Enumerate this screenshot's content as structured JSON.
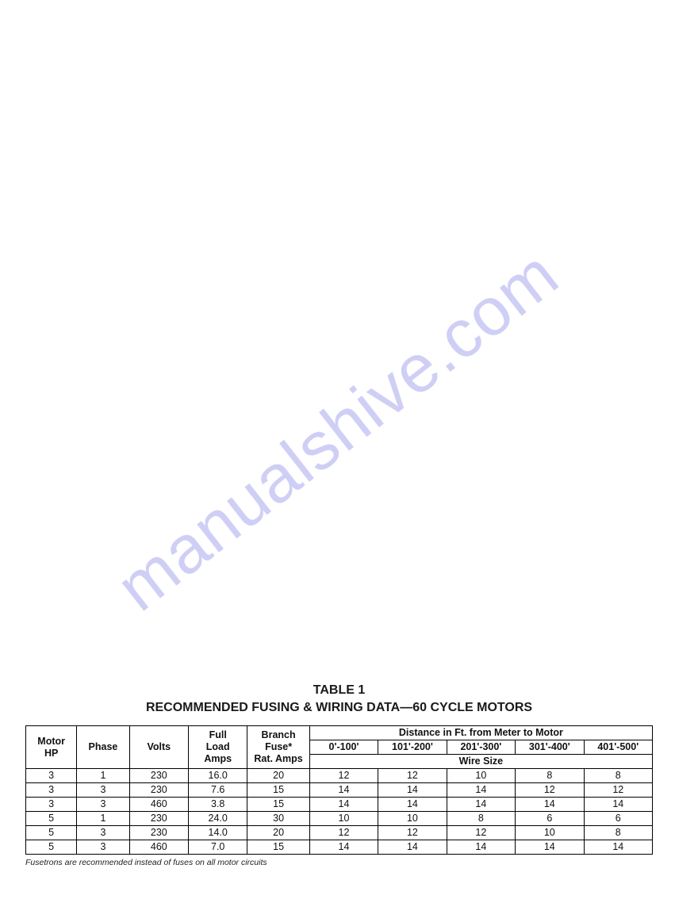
{
  "watermark": {
    "text": "manualshive.com",
    "color": "#a9a8f0",
    "rotation_deg": -38,
    "fontsize": 85
  },
  "table": {
    "caption_line1": "TABLE 1",
    "caption_line2": "RECOMMENDED FUSING & WIRING DATA—60 CYCLE MOTORS",
    "columns": {
      "motor_hp": "Motor HP",
      "phase": "Phase",
      "volts": "Volts",
      "full_load_amps": "Full Load Amps",
      "branch_fuse": "Branch Fuse* Rat. Amps",
      "distance_header": "Distance in Ft. from Meter to Motor",
      "wire_size": "Wire Size",
      "dist_ranges": [
        "0'-100'",
        "101'-200'",
        "201'-300'",
        "301'-400'",
        "401'-500'"
      ]
    },
    "rows": [
      {
        "hp": "3",
        "phase": "1",
        "volts": "230",
        "amps": "16.0",
        "fuse": "20",
        "dist": [
          "12",
          "12",
          "10",
          "8",
          "8"
        ]
      },
      {
        "hp": "3",
        "phase": "3",
        "volts": "230",
        "amps": "7.6",
        "fuse": "15",
        "dist": [
          "14",
          "14",
          "14",
          "12",
          "12"
        ]
      },
      {
        "hp": "3",
        "phase": "3",
        "volts": "460",
        "amps": "3.8",
        "fuse": "15",
        "dist": [
          "14",
          "14",
          "14",
          "14",
          "14"
        ]
      },
      {
        "hp": "5",
        "phase": "1",
        "volts": "230",
        "amps": "24.0",
        "fuse": "30",
        "dist": [
          "10",
          "10",
          "8",
          "6",
          "6"
        ]
      },
      {
        "hp": "5",
        "phase": "3",
        "volts": "230",
        "amps": "14.0",
        "fuse": "20",
        "dist": [
          "12",
          "12",
          "12",
          "10",
          "8"
        ]
      },
      {
        "hp": "5",
        "phase": "3",
        "volts": "460",
        "amps": "7.0",
        "fuse": "15",
        "dist": [
          "14",
          "14",
          "14",
          "14",
          "14"
        ]
      }
    ],
    "footnote": "Fusetrons are recommended instead of fuses on all motor circuits",
    "style": {
      "border_color": "#000000",
      "header_fontsize": 12.5,
      "cell_fontsize": 12.5,
      "title_fontsize": 16,
      "footnote_fontsize": 10.5,
      "background_color": "#ffffff"
    }
  }
}
